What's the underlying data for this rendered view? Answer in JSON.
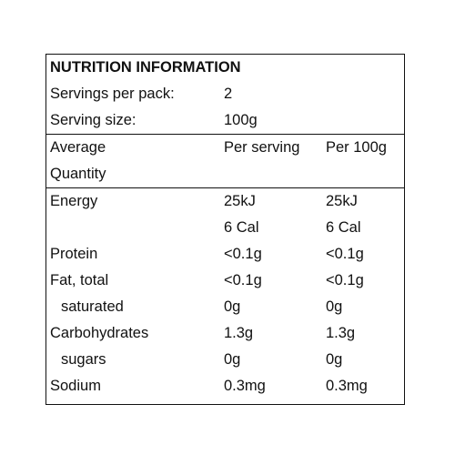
{
  "title": "NUTRITION INFORMATION",
  "servings_per_pack": {
    "label": "Servings per pack:",
    "value": "2"
  },
  "serving_size": {
    "label": "Serving size:",
    "value": "100g"
  },
  "header": {
    "quantity_line1": "Average",
    "quantity_line2": "Quantity",
    "per_serving": "Per serving",
    "per_100g": "Per 100g"
  },
  "rows": [
    {
      "label": "Energy",
      "per_serving": "25kJ",
      "per_100g": "25kJ"
    },
    {
      "label": "",
      "per_serving": "6 Cal",
      "per_100g": "6 Cal"
    },
    {
      "label": "Protein",
      "per_serving": "<0.1g",
      "per_100g": "<0.1g"
    },
    {
      "label": "Fat, total",
      "per_serving": "<0.1g",
      "per_100g": "<0.1g"
    },
    {
      "label": "saturated",
      "per_serving": "0g",
      "per_100g": "0g"
    },
    {
      "label": "Carbohydrates",
      "per_serving": "1.3g",
      "per_100g": "1.3g"
    },
    {
      "label": "sugars",
      "per_serving": "0g",
      "per_100g": "0g"
    },
    {
      "label": "Sodium",
      "per_serving": "0.3mg",
      "per_100g": "0.3mg"
    }
  ]
}
